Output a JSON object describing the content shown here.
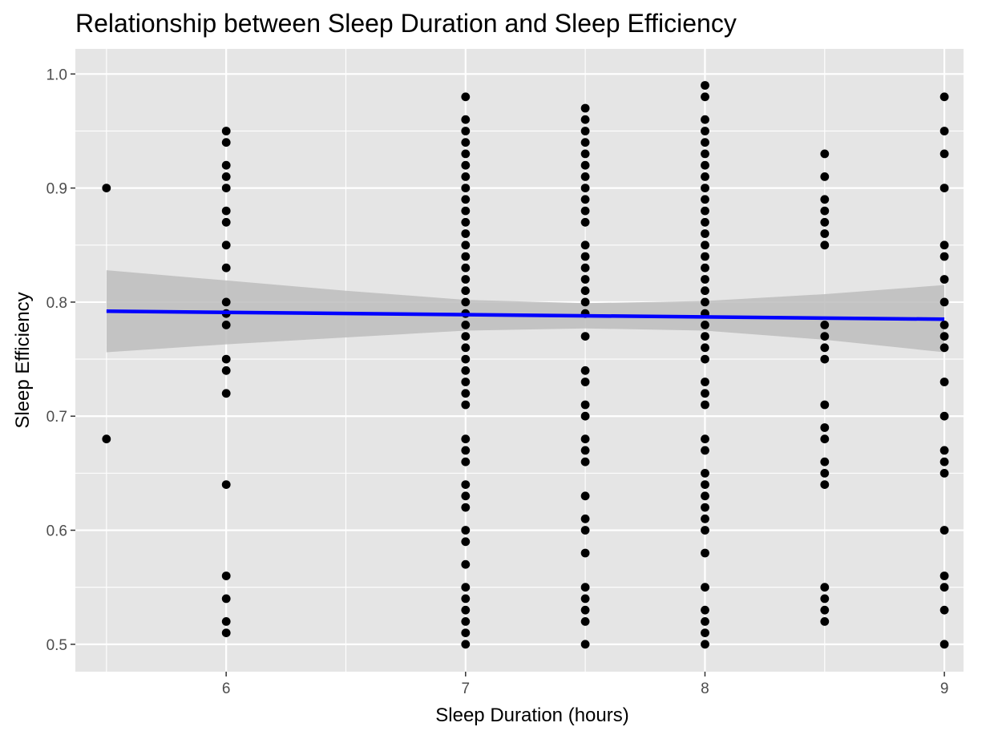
{
  "chart_data": {
    "type": "scatter",
    "title": "Relationship between Sleep Duration and Sleep Efficiency",
    "xlabel": "Sleep Duration (hours)",
    "ylabel": "Sleep Efficiency",
    "xlim": [
      5.37,
      9.08
    ],
    "ylim": [
      0.476,
      1.022
    ],
    "x_ticks": [
      6,
      7,
      8,
      9
    ],
    "x_tick_labels": [
      "6",
      "7",
      "8",
      "9"
    ],
    "y_ticks": [
      0.5,
      0.6,
      0.7,
      0.8,
      0.9,
      1.0
    ],
    "y_tick_labels": [
      "0.5",
      "0.6",
      "0.7",
      "0.8",
      "0.9",
      "1.0"
    ],
    "grid": true,
    "legend": "none",
    "colors": {
      "panel": "#e5e5e5",
      "grid": "#ffffff",
      "points": "#000000",
      "trend_line": "#0000ff",
      "confidence_band": "#bdbdbd"
    },
    "trend_line": {
      "method": "linear fit",
      "x": [
        5.5,
        9.0
      ],
      "y": [
        0.792,
        0.785
      ]
    },
    "confidence_band": {
      "x": [
        5.5,
        6.0,
        6.5,
        7.0,
        7.5,
        8.0,
        8.5,
        9.0
      ],
      "lower": [
        0.756,
        0.763,
        0.769,
        0.775,
        0.777,
        0.775,
        0.767,
        0.756
      ],
      "upper": [
        0.828,
        0.819,
        0.81,
        0.802,
        0.799,
        0.801,
        0.807,
        0.815
      ]
    },
    "series": [
      {
        "points": [
          [
            5.5,
            0.9
          ],
          [
            5.5,
            0.68
          ],
          [
            6,
            0.95
          ],
          [
            6,
            0.94
          ],
          [
            6,
            0.92
          ],
          [
            6,
            0.91
          ],
          [
            6,
            0.9
          ],
          [
            6,
            0.88
          ],
          [
            6,
            0.87
          ],
          [
            6,
            0.85
          ],
          [
            6,
            0.83
          ],
          [
            6,
            0.8
          ],
          [
            6,
            0.79
          ],
          [
            6,
            0.78
          ],
          [
            6,
            0.75
          ],
          [
            6,
            0.74
          ],
          [
            6,
            0.72
          ],
          [
            6,
            0.64
          ],
          [
            6,
            0.56
          ],
          [
            6,
            0.54
          ],
          [
            6,
            0.52
          ],
          [
            6,
            0.51
          ],
          [
            7,
            0.98
          ],
          [
            7,
            0.96
          ],
          [
            7,
            0.95
          ],
          [
            7,
            0.94
          ],
          [
            7,
            0.93
          ],
          [
            7,
            0.92
          ],
          [
            7,
            0.91
          ],
          [
            7,
            0.9
          ],
          [
            7,
            0.89
          ],
          [
            7,
            0.88
          ],
          [
            7,
            0.87
          ],
          [
            7,
            0.86
          ],
          [
            7,
            0.85
          ],
          [
            7,
            0.84
          ],
          [
            7,
            0.83
          ],
          [
            7,
            0.82
          ],
          [
            7,
            0.81
          ],
          [
            7,
            0.8
          ],
          [
            7,
            0.79
          ],
          [
            7,
            0.78
          ],
          [
            7,
            0.77
          ],
          [
            7,
            0.76
          ],
          [
            7,
            0.75
          ],
          [
            7,
            0.74
          ],
          [
            7,
            0.73
          ],
          [
            7,
            0.72
          ],
          [
            7,
            0.71
          ],
          [
            7,
            0.68
          ],
          [
            7,
            0.67
          ],
          [
            7,
            0.66
          ],
          [
            7,
            0.64
          ],
          [
            7,
            0.63
          ],
          [
            7,
            0.62
          ],
          [
            7,
            0.6
          ],
          [
            7,
            0.59
          ],
          [
            7,
            0.57
          ],
          [
            7,
            0.55
          ],
          [
            7,
            0.54
          ],
          [
            7,
            0.53
          ],
          [
            7,
            0.52
          ],
          [
            7,
            0.51
          ],
          [
            7,
            0.5
          ],
          [
            7.5,
            0.97
          ],
          [
            7.5,
            0.96
          ],
          [
            7.5,
            0.95
          ],
          [
            7.5,
            0.94
          ],
          [
            7.5,
            0.93
          ],
          [
            7.5,
            0.92
          ],
          [
            7.5,
            0.91
          ],
          [
            7.5,
            0.9
          ],
          [
            7.5,
            0.89
          ],
          [
            7.5,
            0.88
          ],
          [
            7.5,
            0.87
          ],
          [
            7.5,
            0.85
          ],
          [
            7.5,
            0.84
          ],
          [
            7.5,
            0.83
          ],
          [
            7.5,
            0.82
          ],
          [
            7.5,
            0.81
          ],
          [
            7.5,
            0.8
          ],
          [
            7.5,
            0.79
          ],
          [
            7.5,
            0.77
          ],
          [
            7.5,
            0.74
          ],
          [
            7.5,
            0.73
          ],
          [
            7.5,
            0.71
          ],
          [
            7.5,
            0.7
          ],
          [
            7.5,
            0.68
          ],
          [
            7.5,
            0.67
          ],
          [
            7.5,
            0.66
          ],
          [
            7.5,
            0.63
          ],
          [
            7.5,
            0.61
          ],
          [
            7.5,
            0.6
          ],
          [
            7.5,
            0.58
          ],
          [
            7.5,
            0.55
          ],
          [
            7.5,
            0.54
          ],
          [
            7.5,
            0.53
          ],
          [
            7.5,
            0.52
          ],
          [
            7.5,
            0.5
          ],
          [
            8,
            0.99
          ],
          [
            8,
            0.98
          ],
          [
            8,
            0.96
          ],
          [
            8,
            0.95
          ],
          [
            8,
            0.94
          ],
          [
            8,
            0.93
          ],
          [
            8,
            0.92
          ],
          [
            8,
            0.91
          ],
          [
            8,
            0.9
          ],
          [
            8,
            0.89
          ],
          [
            8,
            0.88
          ],
          [
            8,
            0.87
          ],
          [
            8,
            0.86
          ],
          [
            8,
            0.85
          ],
          [
            8,
            0.84
          ],
          [
            8,
            0.83
          ],
          [
            8,
            0.82
          ],
          [
            8,
            0.81
          ],
          [
            8,
            0.8
          ],
          [
            8,
            0.79
          ],
          [
            8,
            0.78
          ],
          [
            8,
            0.77
          ],
          [
            8,
            0.76
          ],
          [
            8,
            0.75
          ],
          [
            8,
            0.73
          ],
          [
            8,
            0.72
          ],
          [
            8,
            0.71
          ],
          [
            8,
            0.68
          ],
          [
            8,
            0.67
          ],
          [
            8,
            0.65
          ],
          [
            8,
            0.64
          ],
          [
            8,
            0.63
          ],
          [
            8,
            0.62
          ],
          [
            8,
            0.61
          ],
          [
            8,
            0.6
          ],
          [
            8,
            0.58
          ],
          [
            8,
            0.55
          ],
          [
            8,
            0.53
          ],
          [
            8,
            0.52
          ],
          [
            8,
            0.51
          ],
          [
            8,
            0.5
          ],
          [
            8.5,
            0.93
          ],
          [
            8.5,
            0.91
          ],
          [
            8.5,
            0.89
          ],
          [
            8.5,
            0.88
          ],
          [
            8.5,
            0.87
          ],
          [
            8.5,
            0.86
          ],
          [
            8.5,
            0.85
          ],
          [
            8.5,
            0.78
          ],
          [
            8.5,
            0.77
          ],
          [
            8.5,
            0.76
          ],
          [
            8.5,
            0.75
          ],
          [
            8.5,
            0.71
          ],
          [
            8.5,
            0.69
          ],
          [
            8.5,
            0.68
          ],
          [
            8.5,
            0.66
          ],
          [
            8.5,
            0.65
          ],
          [
            8.5,
            0.64
          ],
          [
            8.5,
            0.55
          ],
          [
            8.5,
            0.54
          ],
          [
            8.5,
            0.53
          ],
          [
            8.5,
            0.52
          ],
          [
            9,
            0.98
          ],
          [
            9,
            0.95
          ],
          [
            9,
            0.93
          ],
          [
            9,
            0.9
          ],
          [
            9,
            0.85
          ],
          [
            9,
            0.84
          ],
          [
            9,
            0.82
          ],
          [
            9,
            0.8
          ],
          [
            9,
            0.78
          ],
          [
            9,
            0.77
          ],
          [
            9,
            0.76
          ],
          [
            9,
            0.73
          ],
          [
            9,
            0.7
          ],
          [
            9,
            0.67
          ],
          [
            9,
            0.66
          ],
          [
            9,
            0.65
          ],
          [
            9,
            0.6
          ],
          [
            9,
            0.56
          ],
          [
            9,
            0.55
          ],
          [
            9,
            0.53
          ],
          [
            9,
            0.5
          ]
        ]
      }
    ]
  }
}
